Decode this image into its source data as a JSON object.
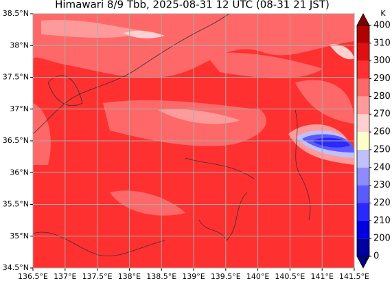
{
  "chart_data": {
    "type": "filled-contour-map",
    "title": "Himawari 8/9 Tbb, 2025-08-31 12 UTC (08-31 21 JST)",
    "xlim": [
      136.5,
      141.5
    ],
    "ylim": [
      34.5,
      38.5
    ],
    "xticks": [
      {
        "value": 136.5,
        "label": "136.5°E"
      },
      {
        "value": 137,
        "label": "137°E"
      },
      {
        "value": 137.5,
        "label": "137.5°E"
      },
      {
        "value": 138,
        "label": "138°E"
      },
      {
        "value": 138.5,
        "label": "138.5°E"
      },
      {
        "value": 139,
        "label": "139°E"
      },
      {
        "value": 139.5,
        "label": "139.5°E"
      },
      {
        "value": 140,
        "label": "140°E"
      },
      {
        "value": 140.5,
        "label": "140.5°E"
      },
      {
        "value": 141,
        "label": "141°E"
      },
      {
        "value": 141.5,
        "label": "141.5°E"
      }
    ],
    "yticks": [
      {
        "value": 34.5,
        "label": "34.5°N"
      },
      {
        "value": 35,
        "label": "35°N"
      },
      {
        "value": 35.5,
        "label": "35.5°N"
      },
      {
        "value": 36,
        "label": "36°N"
      },
      {
        "value": 36.5,
        "label": "36.5°N"
      },
      {
        "value": 37,
        "label": "37°N"
      },
      {
        "value": 37.5,
        "label": "37.5°N"
      },
      {
        "value": 38,
        "label": "38°N"
      },
      {
        "value": 38.5,
        "label": "38.5°N"
      }
    ],
    "grid": true,
    "colorbar": {
      "label": "K",
      "levels": [
        0,
        200,
        210,
        220,
        230,
        240,
        250,
        260,
        270,
        280,
        290,
        300,
        310,
        400
      ],
      "colors": [
        "#0000a0",
        "#0000e0",
        "#2828ff",
        "#5a5aff",
        "#8c8cff",
        "#c0c0ff",
        "#ffffc8",
        "#ffd0d0",
        "#ff9a9a",
        "#ff6868",
        "#ff3030",
        "#e01010",
        "#b00000"
      ],
      "under_color": "#000080",
      "over_color": "#800000"
    }
  }
}
